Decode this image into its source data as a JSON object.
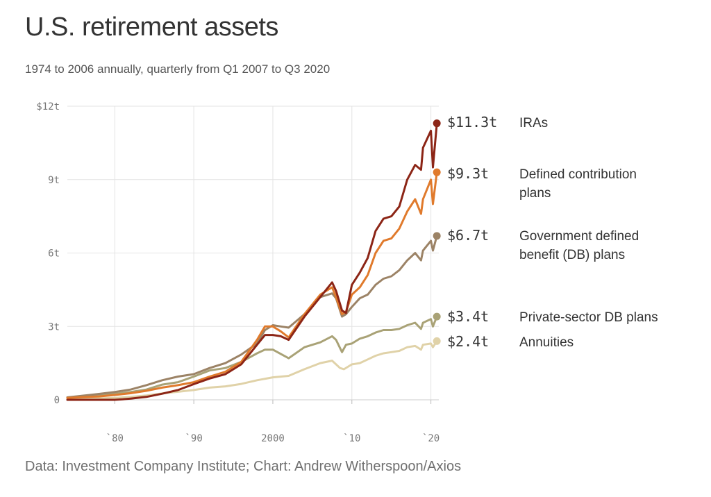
{
  "header": {
    "title": "U.S. retirement assets",
    "subtitle": "1974 to 2006 annually, quarterly from Q1 2007 to Q3 2020"
  },
  "footer": {
    "source": "Data: Investment Company Institute; Chart: Andrew Witherspoon/Axios"
  },
  "chart_data": {
    "type": "line",
    "title": "U.S. retirement assets",
    "subtitle": "1974 to 2006 annually, quarterly from Q1 2007 to Q3 2020",
    "xlabel": "",
    "ylabel": "",
    "xlim": [
      1974,
      2021
    ],
    "ylim": [
      0,
      12
    ],
    "grid": true,
    "legend": "direct labels at line ends, right",
    "y_ticks": [
      {
        "value": 0,
        "label": "0"
      },
      {
        "value": 3,
        "label": "3t"
      },
      {
        "value": 6,
        "label": "6t"
      },
      {
        "value": 9,
        "label": "9t"
      },
      {
        "value": 12,
        "label": "$12t"
      }
    ],
    "x_ticks": [
      {
        "value": 1980,
        "label": "`80"
      },
      {
        "value": 1990,
        "label": "`90"
      },
      {
        "value": 2000,
        "label": "2000"
      },
      {
        "value": 2010,
        "label": "`10"
      },
      {
        "value": 2020,
        "label": "`20"
      }
    ],
    "series": [
      {
        "name": "Annuities",
        "color": "#e0d2a8",
        "end_value": "$2.4t",
        "label_lines": [
          "Annuities"
        ],
        "x": [
          1974,
          1976,
          1978,
          1980,
          1982,
          1984,
          1986,
          1988,
          1990,
          1992,
          1994,
          1996,
          1998,
          2000,
          2002,
          2004,
          2006,
          2007.5,
          2008.5,
          2009,
          2010,
          2011,
          2012,
          2013,
          2014,
          2015,
          2016,
          2017,
          2018,
          2018.75,
          2019,
          2020,
          2020.25,
          2020.75
        ],
        "values": [
          0.03,
          0.04,
          0.06,
          0.08,
          0.12,
          0.18,
          0.26,
          0.33,
          0.4,
          0.5,
          0.55,
          0.65,
          0.8,
          0.92,
          0.98,
          1.25,
          1.5,
          1.6,
          1.3,
          1.25,
          1.45,
          1.5,
          1.65,
          1.8,
          1.9,
          1.95,
          2.0,
          2.15,
          2.2,
          2.05,
          2.25,
          2.3,
          2.15,
          2.4
        ]
      },
      {
        "name": "Private-sector DB plans",
        "color": "#a9a276",
        "end_value": "$3.4t",
        "label_lines": [
          "Private-sector DB plans"
        ],
        "x": [
          1974,
          1976,
          1978,
          1980,
          1982,
          1984,
          1986,
          1988,
          1990,
          1992,
          1994,
          1996,
          1998,
          1999,
          2000,
          2002,
          2004,
          2006,
          2007.5,
          2008,
          2008.75,
          2009.25,
          2010,
          2011,
          2012,
          2013,
          2014,
          2015,
          2016,
          2017,
          2018,
          2018.75,
          2019,
          2020,
          2020.25,
          2020.75
        ],
        "values": [
          0.1,
          0.13,
          0.17,
          0.25,
          0.32,
          0.42,
          0.62,
          0.72,
          0.95,
          1.2,
          1.3,
          1.55,
          1.9,
          2.05,
          2.05,
          1.7,
          2.15,
          2.35,
          2.6,
          2.45,
          1.95,
          2.25,
          2.3,
          2.5,
          2.6,
          2.75,
          2.85,
          2.85,
          2.9,
          3.05,
          3.15,
          2.9,
          3.15,
          3.3,
          3.0,
          3.4
        ]
      },
      {
        "name": "Government defined benefit (DB) plans",
        "color": "#9c8366",
        "end_value": "$6.7t",
        "label_lines": [
          "Government defined",
          "benefit (DB) plans"
        ],
        "x": [
          1974,
          1976,
          1978,
          1980,
          1982,
          1984,
          1986,
          1988,
          1990,
          1992,
          1994,
          1996,
          1998,
          1999,
          2000,
          2001,
          2002,
          2004,
          2006,
          2007.5,
          2008,
          2008.75,
          2009.25,
          2010,
          2011,
          2012,
          2013,
          2014,
          2015,
          2016,
          2017,
          2018,
          2018.75,
          2019,
          2020,
          2020.25,
          2020.75
        ],
        "values": [
          0.1,
          0.17,
          0.24,
          0.32,
          0.42,
          0.6,
          0.8,
          0.95,
          1.05,
          1.3,
          1.5,
          1.85,
          2.3,
          2.85,
          3.05,
          3.0,
          2.95,
          3.5,
          4.2,
          4.35,
          4.15,
          3.4,
          3.5,
          3.8,
          4.15,
          4.3,
          4.7,
          4.95,
          5.05,
          5.3,
          5.7,
          6.0,
          5.7,
          6.1,
          6.5,
          6.1,
          6.7
        ]
      },
      {
        "name": "Defined contribution plans",
        "color": "#e07a2c",
        "end_value": "$9.3t",
        "label_lines": [
          "Defined contribution",
          "plans"
        ],
        "x": [
          1974,
          1976,
          1978,
          1980,
          1982,
          1984,
          1986,
          1988,
          1990,
          1992,
          1994,
          1996,
          1998,
          1999,
          2000,
          2001,
          2002,
          2004,
          2006,
          2007.5,
          2008,
          2008.75,
          2009.25,
          2010,
          2011,
          2012,
          2013,
          2014,
          2015,
          2016,
          2017,
          2018,
          2018.75,
          2019,
          2020,
          2020.25,
          2020.75
        ],
        "values": [
          0.08,
          0.11,
          0.14,
          0.2,
          0.27,
          0.37,
          0.5,
          0.6,
          0.72,
          0.95,
          1.15,
          1.55,
          2.45,
          3.0,
          3.0,
          2.8,
          2.55,
          3.5,
          4.3,
          4.6,
          4.2,
          3.5,
          3.6,
          4.3,
          4.6,
          5.1,
          6.0,
          6.5,
          6.6,
          7.0,
          7.7,
          8.2,
          7.6,
          8.2,
          9.0,
          8.0,
          9.3
        ]
      },
      {
        "name": "IRAs",
        "color": "#8c2516",
        "end_value": "$11.3t",
        "label_lines": [
          "IRAs"
        ],
        "x": [
          1974,
          1976,
          1978,
          1980,
          1981,
          1982,
          1984,
          1986,
          1988,
          1990,
          1992,
          1994,
          1996,
          1998,
          1999,
          2000,
          2001,
          2002,
          2004,
          2006,
          2007.5,
          2008,
          2008.75,
          2009.25,
          2010,
          2011,
          2012,
          2013,
          2014,
          2015,
          2016,
          2017,
          2018,
          2018.75,
          2019,
          2020,
          2020.25,
          2020.75
        ],
        "values": [
          0.0,
          0.0,
          0.0,
          0.0,
          0.02,
          0.05,
          0.12,
          0.25,
          0.4,
          0.64,
          0.87,
          1.05,
          1.45,
          2.25,
          2.65,
          2.65,
          2.6,
          2.45,
          3.4,
          4.2,
          4.8,
          4.45,
          3.65,
          3.55,
          4.7,
          5.2,
          5.8,
          6.9,
          7.4,
          7.5,
          7.9,
          9.0,
          9.6,
          9.4,
          10.3,
          11.0,
          9.5,
          11.3
        ]
      }
    ]
  }
}
